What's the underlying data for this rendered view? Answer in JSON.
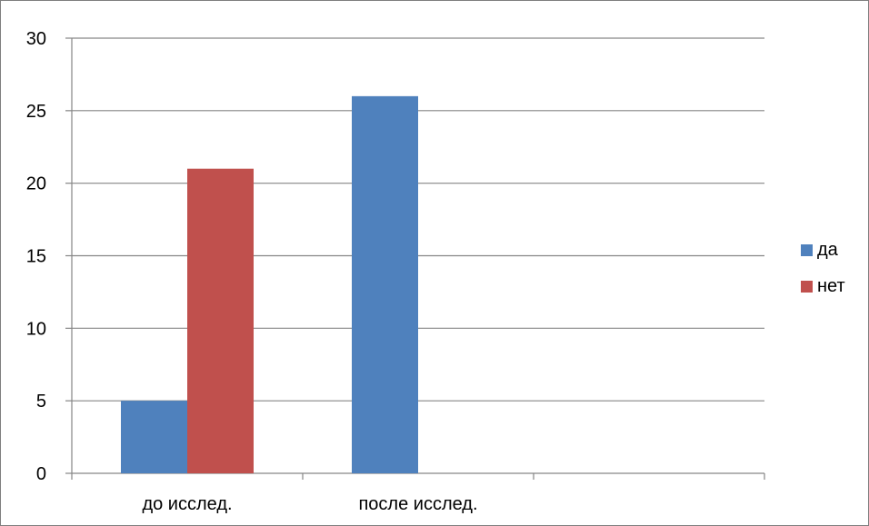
{
  "chart_data": {
    "type": "bar",
    "categories": [
      "до исслед.",
      "после исслед.",
      ""
    ],
    "series": [
      {
        "name": "да",
        "values": [
          5,
          26,
          null
        ],
        "color": "#4f81bd"
      },
      {
        "name": "нет",
        "values": [
          21,
          null,
          null
        ],
        "color": "#c0504d"
      }
    ],
    "ylim": [
      0,
      30
    ],
    "yticks": [
      0,
      5,
      10,
      15,
      20,
      25,
      30
    ],
    "grid": true,
    "legend_position": "right",
    "title": "",
    "xlabel": "",
    "ylabel": ""
  }
}
